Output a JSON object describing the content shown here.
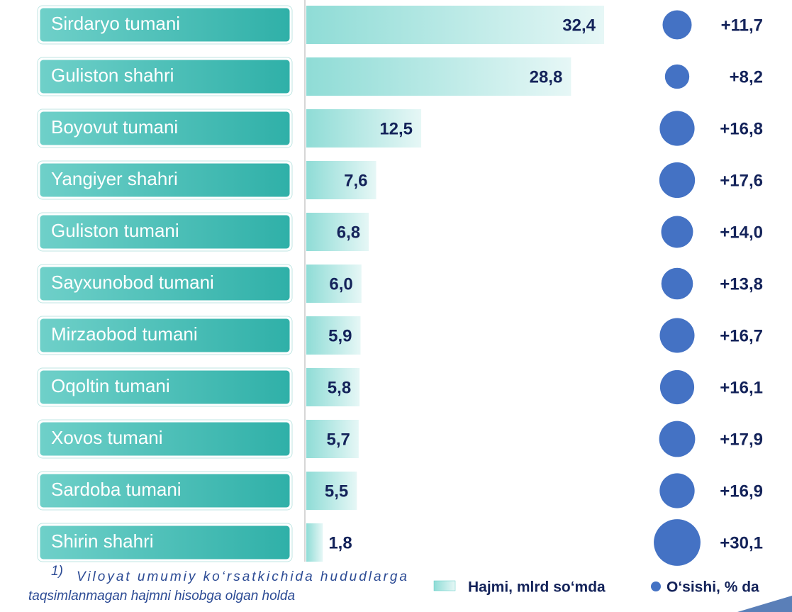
{
  "chart_data": {
    "type": "bar",
    "categories": [
      "Sirdaryo tumani",
      "Guliston shahri",
      "Boyovut tumani",
      "Yangiyer shahri",
      "Guliston tumani",
      "Sayxunobod tumani",
      "Mirzaobod tumani",
      "Oqoltin tumani",
      "Xovos tumani",
      "Sardoba tumani",
      "Shirin shahri"
    ],
    "series": [
      {
        "name": "Hajmi, mlrd so‘mda",
        "type": "bar",
        "color": "#5fcdc6",
        "values": [
          32.4,
          28.8,
          12.5,
          7.6,
          6.8,
          6.0,
          5.9,
          5.8,
          5.7,
          5.5,
          1.8
        ],
        "value_labels": [
          "32,4",
          "28,8",
          "12,5",
          "7,6",
          "6,8",
          "6,0",
          "5,9",
          "5,8",
          "5,7",
          "5,5",
          "1,8"
        ]
      },
      {
        "name": "O‘sishi, % da",
        "type": "bubble",
        "color": "#4472c4",
        "values": [
          11.7,
          8.2,
          16.8,
          17.6,
          14.0,
          13.8,
          16.7,
          16.1,
          17.9,
          16.9,
          30.1
        ],
        "value_labels": [
          "+11,7",
          "+8,2",
          "+16,8",
          "+17,6",
          "+14,0",
          "+13,8",
          "+16,7",
          "+16,1",
          "+17,9",
          "+16,9",
          "+30,1"
        ]
      }
    ],
    "footnote": {
      "marker": "1)",
      "lines": [
        "Viloyat umumiy ko‘rsatkichida hududlarga",
        "taqsimlanmagan hajmni hisobga olgan holda"
      ]
    }
  }
}
